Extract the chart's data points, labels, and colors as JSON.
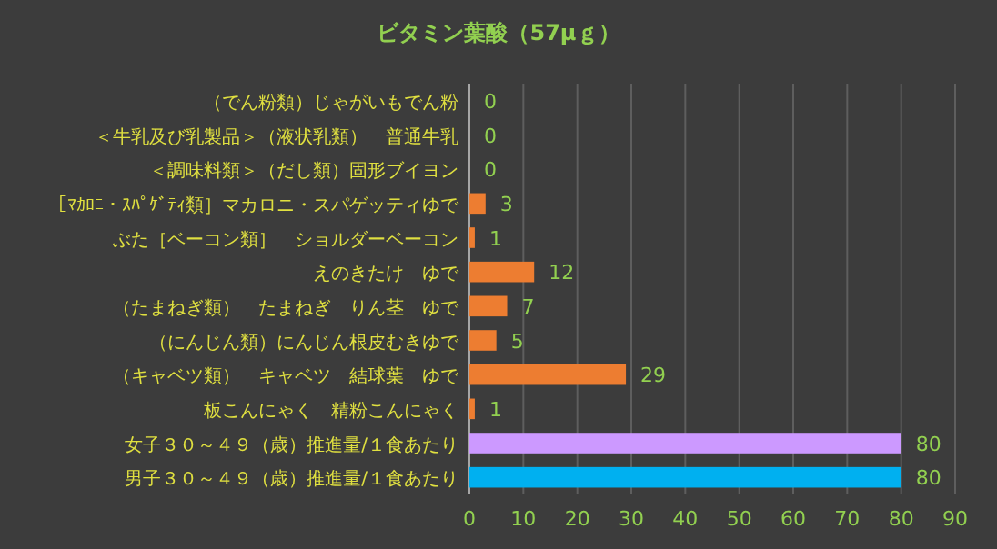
{
  "chart_data": {
    "type": "bar",
    "orientation": "horizontal",
    "title": "ビタミン葉酸（57μｇ）",
    "categories": [
      "（でん粉類）じゃがいもでん粉",
      "＜牛乳及び乳製品＞（液状乳類）　普通牛乳",
      "＜調味料類＞（だし類）固形ブイヨン",
      "［ﾏｶﾛﾆ・ｽﾊﾟｹﾞﾃｨ類］マカロニ・スパゲッティゆで",
      "ぶた［ベーコン類］　ショルダーベーコン",
      "えのきたけ　ゆで",
      "（たまねぎ類）　たまねぎ　りん茎　ゆで",
      "（にんじん類）にんじん根皮むきゆで",
      "（キャベツ類）　キャベツ　結球葉　ゆで",
      "板こんにゃく　精粉こんにゃく",
      "女子３０～４９（歳）推進量/１食あたり",
      "男子３０～４９（歳）推進量/１食あたり"
    ],
    "values": [
      0,
      0,
      0,
      3,
      1,
      12,
      7,
      5,
      29,
      1,
      80,
      80
    ],
    "colors": [
      "#ed7d31",
      "#ed7d31",
      "#ed7d31",
      "#ed7d31",
      "#ed7d31",
      "#ed7d31",
      "#ed7d31",
      "#ed7d31",
      "#ed7d31",
      "#ed7d31",
      "#cc99ff",
      "#00b0f0"
    ],
    "xlim": [
      0,
      90
    ],
    "xticks": [
      0,
      10,
      20,
      30,
      40,
      50,
      60,
      70,
      80,
      90
    ],
    "grid": "x",
    "data_labels": true
  }
}
